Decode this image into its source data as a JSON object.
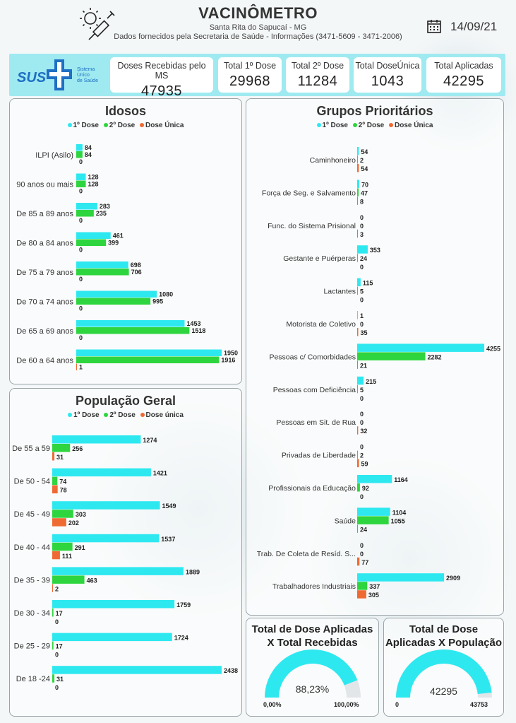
{
  "header": {
    "title": "VACINÔMETRO",
    "subtitle": "Santa Rita do Sapucaí - MG",
    "source": "Dados fornecidos pela Secretaria de Saúde - Informações (3471-5609 - 3471-2006)",
    "date": "14/09/21"
  },
  "sus": {
    "mark": "SUS",
    "line1": "Sistema",
    "line2": "Único",
    "line3": "de Saúde"
  },
  "kpis": [
    {
      "label": "Doses Recebidas pelo MS",
      "value": "47935"
    },
    {
      "label": "Total 1º Dose",
      "value": "29968"
    },
    {
      "label": "Total 2º Dose",
      "value": "11284"
    },
    {
      "label": "Total DoseÚnica",
      "value": "1043"
    },
    {
      "label": "Total Aplicadas",
      "value": "42295"
    }
  ],
  "colors": {
    "dose1": "#2ee8f0",
    "dose2": "#2ed53e",
    "dose_unica": "#ef6a32",
    "band": "#9feaf0",
    "gauge": "#2ee8f0",
    "sus_blue": "#1f6fc4"
  },
  "chart_data": [
    {
      "type": "bar",
      "title": "Idosos",
      "orientation": "horizontal",
      "legend": [
        "1º Dose",
        "2º Dose",
        "Dose Única"
      ],
      "legend_position": "top",
      "categories": [
        "ILPI (Asilo)",
        "90 anos ou mais",
        "De 85 a 89 anos",
        "De 80 a 84 anos",
        "De 75 a 79 anos",
        "De 70 a 74 anos",
        "De 65 a 69 anos",
        "De 60 a 64 anos"
      ],
      "series": [
        {
          "name": "1º Dose",
          "values": [
            84,
            128,
            283,
            461,
            698,
            1080,
            1453,
            1950
          ]
        },
        {
          "name": "2º Dose",
          "values": [
            84,
            128,
            235,
            399,
            706,
            995,
            1518,
            1916
          ]
        },
        {
          "name": "Dose Única",
          "values": [
            0,
            0,
            0,
            0,
            0,
            0,
            0,
            1
          ]
        }
      ],
      "xlim": [
        0,
        1950
      ]
    },
    {
      "type": "bar",
      "title": "População Geral",
      "orientation": "horizontal",
      "legend": [
        "1º Dose",
        "2º Dose",
        "Dose única"
      ],
      "legend_position": "top",
      "categories": [
        "De 55 a 59",
        "De 50 - 54",
        "De 45 - 49",
        "De 40 - 44",
        "De 35 - 39",
        "De 30 - 34",
        "De 25 - 29",
        "De 18 -24"
      ],
      "series": [
        {
          "name": "1º Dose",
          "values": [
            1274,
            1421,
            1549,
            1537,
            1889,
            1759,
            1724,
            2438
          ]
        },
        {
          "name": "2º Dose",
          "values": [
            256,
            74,
            303,
            291,
            463,
            17,
            17,
            31
          ]
        },
        {
          "name": "Dose única",
          "values": [
            31,
            78,
            202,
            111,
            2,
            0,
            0,
            0
          ]
        }
      ],
      "xlim": [
        0,
        2438
      ]
    },
    {
      "type": "bar",
      "title": "Grupos Prioritários",
      "orientation": "horizontal",
      "legend": [
        "1º Dose",
        "2º Dose",
        "Dose Única"
      ],
      "legend_position": "top",
      "categories": [
        "Caminhoneiro",
        "Força de Seg. e Salvamento",
        "Func. do Sistema Prisional",
        "Gestante e Puérperas",
        "Lactantes",
        "Motorista de Coletivo",
        "Pessoas c/ Comorbidades",
        "Pessoas com Deficiência",
        "Pessoas em Sit. de Rua",
        "Privadas de Liberdade",
        "Profissionais da Educação",
        "Saúde",
        "Trab. De Coleta de Resíd. S...",
        "Trabalhadores Industriais"
      ],
      "series": [
        {
          "name": "1º Dose",
          "values": [
            54,
            70,
            0,
            353,
            115,
            1,
            4255,
            215,
            0,
            0,
            1164,
            1104,
            0,
            2909
          ]
        },
        {
          "name": "2º Dose",
          "values": [
            2,
            47,
            0,
            24,
            5,
            0,
            2282,
            5,
            0,
            2,
            92,
            1055,
            0,
            337
          ]
        },
        {
          "name": "Dose Única",
          "values": [
            54,
            8,
            3,
            0,
            0,
            35,
            21,
            0,
            32,
            59,
            0,
            24,
            77,
            305
          ]
        }
      ],
      "xlim": [
        0,
        4255
      ]
    }
  ],
  "gauges": [
    {
      "title_line1": "Total de Dose Aplicadas",
      "title_line2": "X Total Recebidas",
      "value_label": "88,23%",
      "fraction": 0.8823,
      "min_label": "0,00%",
      "max_label": "100,00%"
    },
    {
      "title_line1": "Total de Dose",
      "title_line2": "Aplicadas X População",
      "value_label": "42295",
      "fraction": 0.9667,
      "min_label": "0",
      "max_label": "43753"
    }
  ]
}
